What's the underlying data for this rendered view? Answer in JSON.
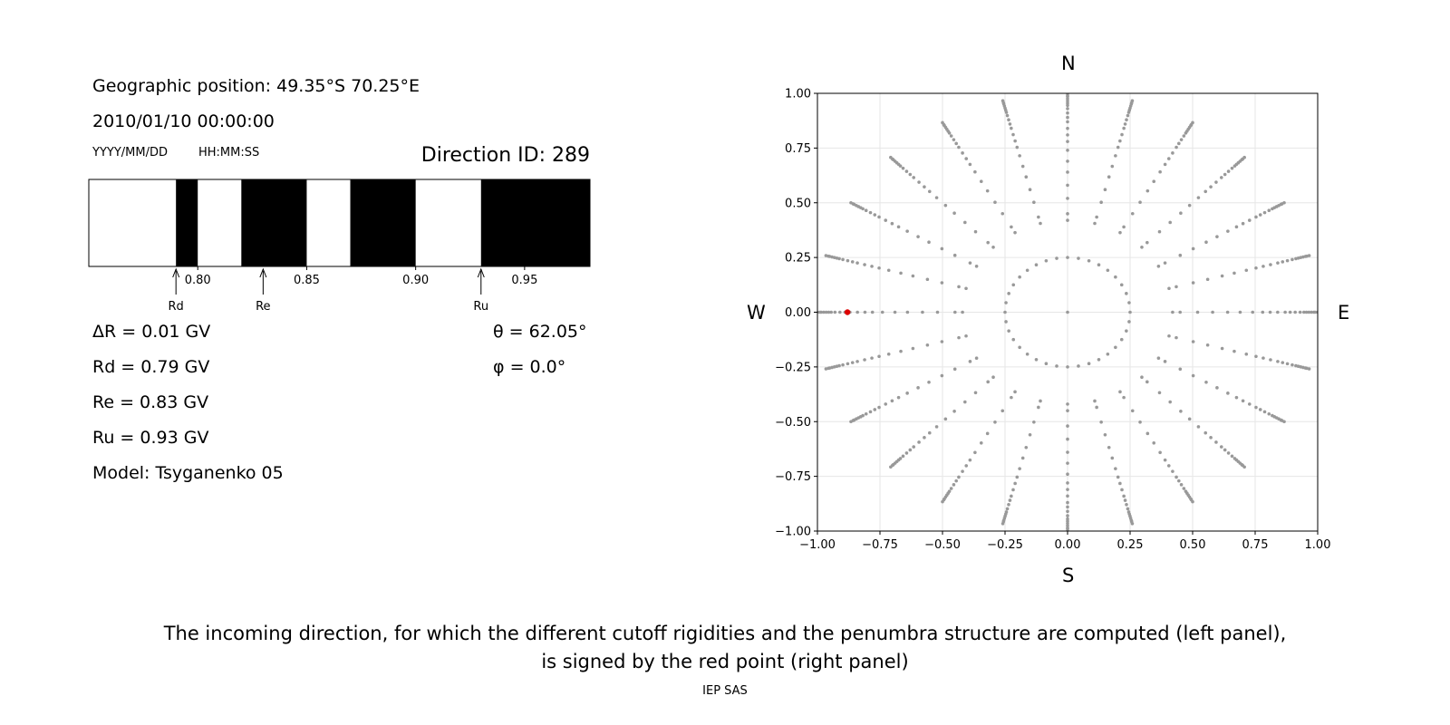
{
  "left_panel": {
    "position_line": "Geographic position: 49.35°S 70.25°E",
    "datetime": "2010/01/10 00:00:00",
    "date_format": "YYYY/MM/DD",
    "time_format": "HH:MM:SS",
    "direction_id": "Direction ID: 289",
    "delta_r": "ΔR = 0.01 GV",
    "rd": "Rd = 0.79 GV",
    "re": "Re = 0.83 GV",
    "ru": "Ru = 0.93 GV",
    "model": "Model: Tsyganenko 05",
    "theta": "θ = 62.05°",
    "phi": "φ = 0.0°"
  },
  "right_panel": {
    "north": "N",
    "south": "S",
    "west": "W",
    "east": "E"
  },
  "caption_line1": "The incoming direction, for which the different cutoff rigidities and the penumbra structure are computed (left panel),",
  "caption_line2": "is signed by the red point (right panel)",
  "footer": "IEP SAS",
  "colors": {
    "point": "#999999",
    "highlight": "#dd0000",
    "allowed": "#000000",
    "forbidden": "#ffffff"
  },
  "chart_data": [
    {
      "type": "bar",
      "name": "penumbra",
      "xlim": [
        0.75,
        0.98
      ],
      "xticks": [
        0.8,
        0.85,
        0.9,
        0.95
      ],
      "xtick_labels": [
        "0.80",
        "0.85",
        "0.90",
        "0.95"
      ],
      "black_intervals": [
        [
          0.79,
          0.8
        ],
        [
          0.82,
          0.85
        ],
        [
          0.87,
          0.9
        ],
        [
          0.93,
          0.98
        ]
      ],
      "markers": [
        {
          "label": "Rd",
          "value": 0.79
        },
        {
          "label": "Re",
          "value": 0.83
        },
        {
          "label": "Ru",
          "value": 0.93
        }
      ]
    },
    {
      "type": "scatter",
      "name": "directions",
      "xlim": [
        -1.0,
        1.0
      ],
      "ylim": [
        -1.0,
        1.0
      ],
      "xticks": [
        -1.0,
        -0.75,
        -0.5,
        -0.25,
        0.0,
        0.25,
        0.5,
        0.75,
        1.0
      ],
      "yticks": [
        -1.0,
        -0.75,
        -0.5,
        -0.25,
        0.0,
        0.25,
        0.5,
        0.75,
        1.0
      ],
      "xtick_labels": [
        "−1.00",
        "−0.75",
        "−0.50",
        "−0.25",
        "0.00",
        "0.25",
        "0.50",
        "0.75",
        "1.00"
      ],
      "ytick_labels": [
        "−1.00",
        "−0.75",
        "−0.50",
        "−0.25",
        "0.00",
        "0.25",
        "0.50",
        "0.75",
        "1.00"
      ],
      "grid": true,
      "rings": [
        0.25,
        0.42,
        0.45,
        0.52,
        0.58,
        0.64,
        0.69,
        0.74,
        0.78,
        0.81,
        0.84,
        0.87,
        0.89,
        0.91,
        0.93,
        0.945,
        0.955,
        0.965,
        0.975,
        0.985,
        0.99,
        1.0
      ],
      "spokes_deg": 24,
      "inner_ring_points": 36,
      "highlight": {
        "x": -0.88,
        "y": 0.0
      }
    }
  ]
}
